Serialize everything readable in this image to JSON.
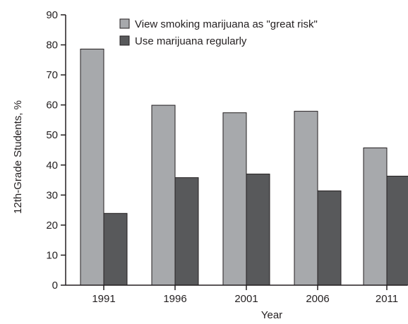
{
  "chart_data": {
    "type": "bar",
    "categories": [
      "1991",
      "1996",
      "2001",
      "2006",
      "2011"
    ],
    "series": [
      {
        "name": "View smoking marijuana as \"great risk\"",
        "values": [
          78.6,
          59.9,
          57.4,
          57.9,
          45.7
        ],
        "color": "#a7a9ac"
      },
      {
        "name": "Use marijuana regularly",
        "values": [
          23.9,
          35.8,
          37.0,
          31.4,
          36.3
        ],
        "color": "#58595b"
      }
    ],
    "xlabel": "Year",
    "ylabel": "12th-Grade Students, %",
    "ylim": [
      0,
      90
    ],
    "yticks": [
      0,
      10,
      20,
      30,
      40,
      50,
      60,
      70,
      80,
      90
    ],
    "grid": false,
    "legend_position": "top-right"
  }
}
